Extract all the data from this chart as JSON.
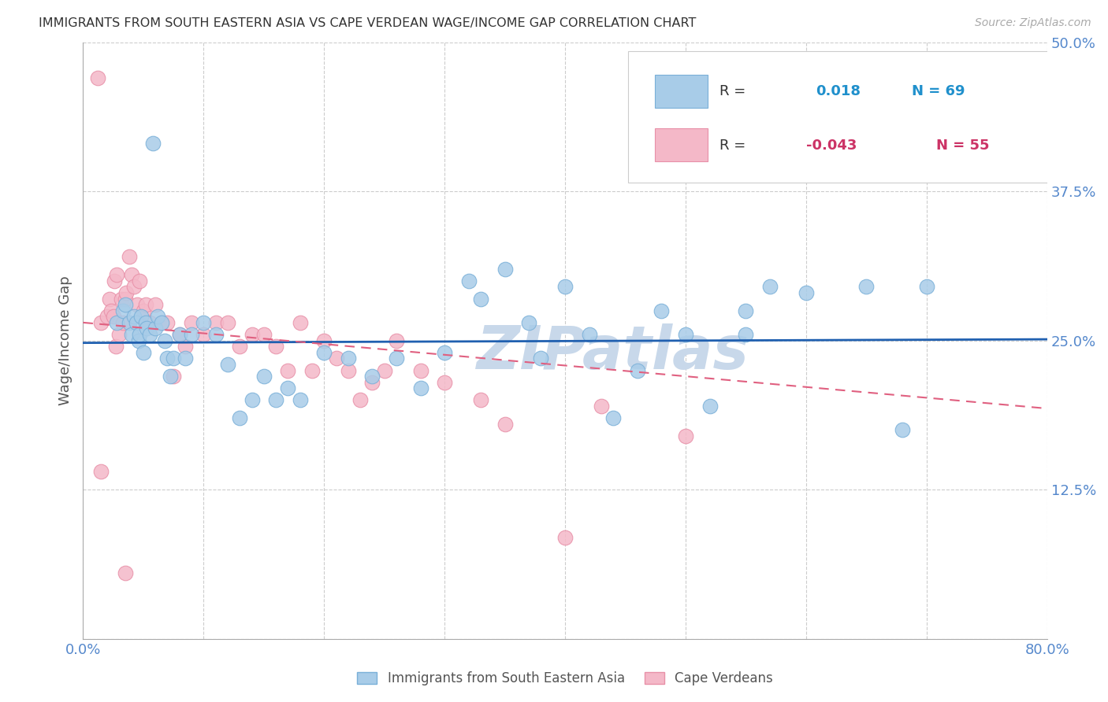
{
  "title": "IMMIGRANTS FROM SOUTH EASTERN ASIA VS CAPE VERDEAN WAGE/INCOME GAP CORRELATION CHART",
  "source": "Source: ZipAtlas.com",
  "ylabel": "Wage/Income Gap",
  "xlim": [
    0.0,
    0.8
  ],
  "ylim": [
    0.0,
    0.5
  ],
  "yticks": [
    0.0,
    0.125,
    0.25,
    0.375,
    0.5
  ],
  "ytick_labels": [
    "",
    "12.5%",
    "25.0%",
    "37.5%",
    "50.0%"
  ],
  "xticks": [
    0.0,
    0.1,
    0.2,
    0.3,
    0.4,
    0.5,
    0.6,
    0.7,
    0.8
  ],
  "xtick_labels": [
    "0.0%",
    "",
    "",
    "",
    "",
    "",
    "",
    "",
    "80.0%"
  ],
  "blue_color": "#a8cce8",
  "pink_color": "#f4b8c8",
  "blue_edge_color": "#7ab0d8",
  "pink_edge_color": "#e890a8",
  "blue_line_color": "#2060b0",
  "pink_line_color": "#e06080",
  "title_color": "#333333",
  "axis_label_color": "#555555",
  "tick_color": "#5588cc",
  "watermark": "ZIPatlas",
  "watermark_color": "#c8d8ea",
  "legend_r_color": "#333333",
  "legend_blue_val_color": "#2090cc",
  "legend_pink_val_color": "#cc3366",
  "blue_x": [
    0.028,
    0.033,
    0.035,
    0.038,
    0.04,
    0.042,
    0.044,
    0.046,
    0.047,
    0.048,
    0.05,
    0.052,
    0.053,
    0.055,
    0.058,
    0.06,
    0.062,
    0.065,
    0.068,
    0.07,
    0.072,
    0.075,
    0.08,
    0.085,
    0.09,
    0.1,
    0.11,
    0.12,
    0.13,
    0.14,
    0.15,
    0.16,
    0.17,
    0.18,
    0.2,
    0.22,
    0.24,
    0.26,
    0.28,
    0.3,
    0.32,
    0.33,
    0.35,
    0.37,
    0.38,
    0.4,
    0.42,
    0.44,
    0.46,
    0.48,
    0.5,
    0.52,
    0.55,
    0.57,
    0.6,
    0.65,
    0.68,
    0.7,
    0.55
  ],
  "blue_y": [
    0.265,
    0.275,
    0.28,
    0.265,
    0.255,
    0.27,
    0.265,
    0.25,
    0.255,
    0.27,
    0.24,
    0.265,
    0.26,
    0.255,
    0.415,
    0.26,
    0.27,
    0.265,
    0.25,
    0.235,
    0.22,
    0.235,
    0.255,
    0.235,
    0.255,
    0.265,
    0.255,
    0.23,
    0.185,
    0.2,
    0.22,
    0.2,
    0.21,
    0.2,
    0.24,
    0.235,
    0.22,
    0.235,
    0.21,
    0.24,
    0.3,
    0.285,
    0.31,
    0.265,
    0.235,
    0.295,
    0.255,
    0.185,
    0.225,
    0.275,
    0.255,
    0.195,
    0.255,
    0.295,
    0.29,
    0.295,
    0.175,
    0.295,
    0.275
  ],
  "pink_x": [
    0.012,
    0.015,
    0.02,
    0.022,
    0.023,
    0.025,
    0.026,
    0.027,
    0.028,
    0.03,
    0.032,
    0.033,
    0.035,
    0.036,
    0.038,
    0.04,
    0.042,
    0.045,
    0.047,
    0.05,
    0.052,
    0.055,
    0.06,
    0.065,
    0.07,
    0.075,
    0.08,
    0.085,
    0.09,
    0.1,
    0.11,
    0.12,
    0.13,
    0.14,
    0.15,
    0.16,
    0.17,
    0.18,
    0.19,
    0.2,
    0.21,
    0.22,
    0.23,
    0.24,
    0.25,
    0.26,
    0.28,
    0.3,
    0.33,
    0.35,
    0.4,
    0.43,
    0.5,
    0.015,
    0.035
  ],
  "pink_y": [
    0.47,
    0.265,
    0.27,
    0.285,
    0.275,
    0.27,
    0.3,
    0.245,
    0.305,
    0.255,
    0.285,
    0.265,
    0.285,
    0.29,
    0.32,
    0.305,
    0.295,
    0.28,
    0.3,
    0.275,
    0.28,
    0.265,
    0.28,
    0.265,
    0.265,
    0.22,
    0.255,
    0.245,
    0.265,
    0.255,
    0.265,
    0.265,
    0.245,
    0.255,
    0.255,
    0.245,
    0.225,
    0.265,
    0.225,
    0.25,
    0.235,
    0.225,
    0.2,
    0.215,
    0.225,
    0.25,
    0.225,
    0.215,
    0.2,
    0.18,
    0.085,
    0.195,
    0.17,
    0.14,
    0.055
  ],
  "blue_trend_x": [
    0.0,
    0.8
  ],
  "blue_trend_y": [
    0.248,
    0.251
  ],
  "pink_trend_x": [
    0.0,
    0.8
  ],
  "pink_trend_y": [
    0.265,
    0.193
  ]
}
